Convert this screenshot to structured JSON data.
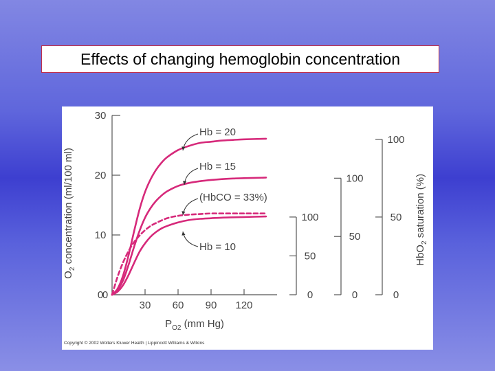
{
  "slide": {
    "title": "Effects of changing hemoglobin concentration",
    "copyright": "Copyright © 2002 Wolters Kluwer Health | Lippincott Williams & Wilkins"
  },
  "chart_data": {
    "type": "line",
    "title": "",
    "xlabel": "PO2 (mm Hg)",
    "ylabel": "O2 concentration (ml/100 ml)",
    "xlim": [
      0,
      150
    ],
    "ylim": [
      0,
      30
    ],
    "x_ticks": [
      "0",
      "30",
      "60",
      "90",
      "120"
    ],
    "y_ticks": [
      "0",
      "10",
      "20",
      "30"
    ],
    "color": "#d6297a",
    "series": [
      {
        "name": "Hb = 20",
        "style": "solid",
        "x": [
          0,
          5,
          10,
          15,
          20,
          25,
          30,
          35,
          40,
          45,
          50,
          60,
          70,
          80,
          90,
          100,
          110,
          120,
          140
        ],
        "y": [
          0,
          1.0,
          3.2,
          6.6,
          10.6,
          14.3,
          17.2,
          19.3,
          20.9,
          22.1,
          23.0,
          24.2,
          24.9,
          25.4,
          25.6,
          25.8,
          25.9,
          26.0,
          26.1
        ]
      },
      {
        "name": "Hb = 15",
        "style": "solid",
        "x": [
          0,
          5,
          10,
          15,
          20,
          25,
          30,
          35,
          40,
          45,
          50,
          60,
          70,
          80,
          90,
          100,
          110,
          120,
          140
        ],
        "y": [
          0,
          0.8,
          2.4,
          5.0,
          8.0,
          10.7,
          12.9,
          14.5,
          15.7,
          16.6,
          17.3,
          18.2,
          18.7,
          19.0,
          19.2,
          19.35,
          19.45,
          19.5,
          19.6
        ]
      },
      {
        "name": "(HbCO = 33%)",
        "style": "dashed",
        "x": [
          0,
          5,
          10,
          15,
          20,
          25,
          30,
          35,
          40,
          50,
          60,
          70,
          80,
          90,
          100,
          120,
          140
        ],
        "y": [
          0,
          3.0,
          5.4,
          7.3,
          8.8,
          9.9,
          10.8,
          11.5,
          12.0,
          12.8,
          13.2,
          13.4,
          13.5,
          13.6,
          13.6,
          13.6,
          13.6
        ]
      },
      {
        "name": "Hb = 10",
        "style": "solid",
        "x": [
          0,
          5,
          10,
          15,
          20,
          25,
          30,
          35,
          40,
          45,
          50,
          60,
          70,
          80,
          90,
          100,
          110,
          120,
          140
        ],
        "y": [
          0,
          0.5,
          1.6,
          3.3,
          5.3,
          7.2,
          8.6,
          9.7,
          10.5,
          11.1,
          11.5,
          12.1,
          12.5,
          12.7,
          12.8,
          12.9,
          12.95,
          13.0,
          13.1
        ]
      }
    ],
    "curve_labels": [
      "Hb = 20",
      "Hb = 15",
      "(HbCO = 33%)",
      "Hb = 10"
    ],
    "saturation_scales": {
      "axis_label": "HbO2 saturation (%)",
      "hb10_ticks": [
        "0",
        "50",
        "100"
      ],
      "hb15_ticks": [
        "0",
        "50",
        "100"
      ],
      "hb20_ticks": [
        "0",
        "50",
        "100"
      ]
    }
  }
}
